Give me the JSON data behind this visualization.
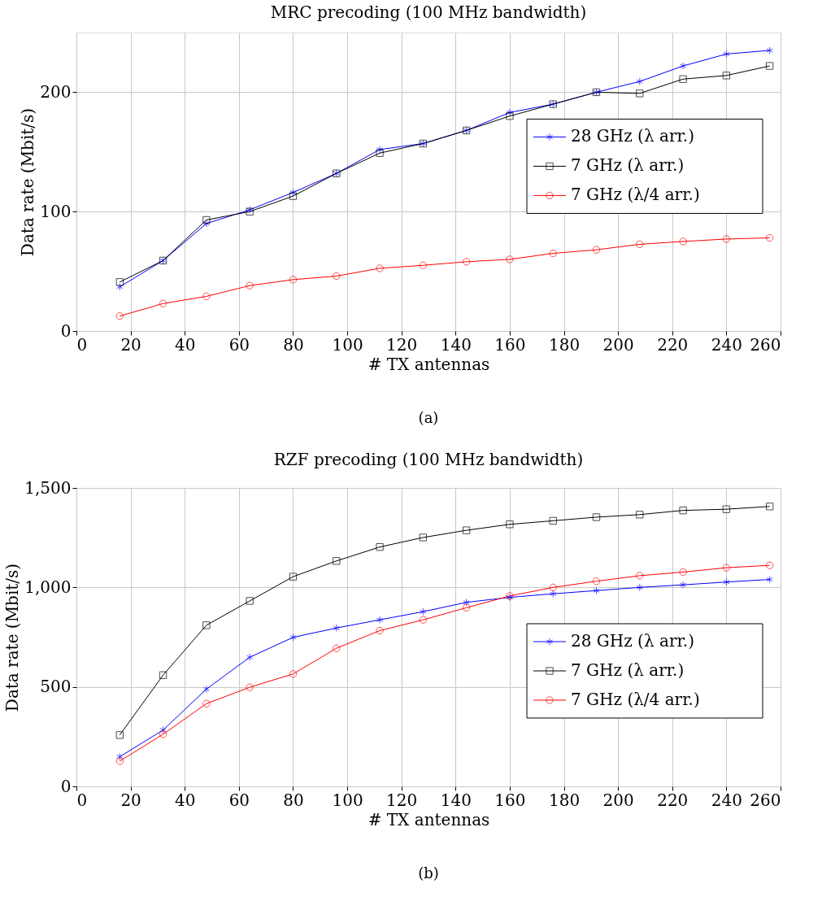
{
  "chart_data": [
    {
      "type": "line",
      "title": "MRC precoding (100 MHz bandwidth)",
      "xlabel": "# TX antennas",
      "ylabel": "Data rate (Mbit/s)",
      "x": [
        16,
        32,
        48,
        64,
        80,
        96,
        112,
        128,
        144,
        160,
        176,
        192,
        208,
        224,
        240,
        256
      ],
      "series": [
        {
          "name": "28 GHz (λ arr.)",
          "color": "#0000ff",
          "marker": "cross",
          "values": [
            37,
            59,
            90,
            101.5,
            116,
            132,
            152,
            157,
            168,
            183,
            190,
            200,
            209,
            222,
            232,
            235
          ]
        },
        {
          "name": "7 GHz (λ arr.)",
          "color": "#000000",
          "marker": "square",
          "values": [
            41,
            59,
            93,
            100,
            113,
            132,
            149,
            157,
            168,
            180,
            190,
            200,
            199,
            211,
            214,
            222
          ]
        },
        {
          "name": "7 GHz (λ/4 arr.)",
          "color": "#ff0000",
          "marker": "circle",
          "values": [
            12.5,
            23,
            29,
            38,
            43,
            46,
            52.5,
            55,
            58,
            60,
            65,
            68,
            72.6,
            75,
            77,
            78
          ]
        }
      ],
      "xlim": [
        0,
        260
      ],
      "xticks": [
        0,
        20,
        40,
        60,
        80,
        100,
        120,
        140,
        160,
        180,
        200,
        220,
        240,
        260
      ],
      "ylim": [
        0,
        250
      ],
      "yticks": [
        0,
        100,
        200
      ],
      "grid": true,
      "legend": "right",
      "line_style": "solid",
      "annotations": [
        "(a)"
      ]
    },
    {
      "type": "line",
      "title": "RZF precoding (100 MHz bandwidth)",
      "xlabel": "# TX antennas",
      "ylabel": "Data rate (Mbit/s)",
      "x": [
        16,
        32,
        48,
        64,
        80,
        96,
        112,
        128,
        144,
        160,
        176,
        192,
        208,
        224,
        240,
        256
      ],
      "series": [
        {
          "name": "28 GHz (λ arr.)",
          "color": "#0000ff",
          "marker": "cross",
          "values": [
            149,
            283,
            489,
            649,
            749,
            796,
            837,
            878,
            925,
            950,
            968,
            984,
            1000,
            1013,
            1027,
            1040
          ]
        },
        {
          "name": "7 GHz (λ arr.)",
          "color": "#000000",
          "marker": "square",
          "values": [
            258,
            559,
            810,
            932,
            1054,
            1133,
            1203,
            1251,
            1287,
            1317,
            1335,
            1353,
            1366,
            1387,
            1393,
            1407
          ]
        },
        {
          "name": "7 GHz (λ/4 arr.)",
          "color": "#ff0000",
          "marker": "circle",
          "values": [
            127,
            262,
            416,
            498,
            565,
            694,
            783,
            837,
            898,
            957,
            1000,
            1031,
            1059,
            1077,
            1099,
            1111
          ]
        }
      ],
      "xlim": [
        0,
        260
      ],
      "xticks": [
        0,
        20,
        40,
        60,
        80,
        100,
        120,
        140,
        160,
        180,
        200,
        220,
        240,
        260
      ],
      "ylim": [
        0,
        1500
      ],
      "yticks": [
        0,
        500,
        {
          "value": 1000,
          "label": "1,000"
        },
        {
          "value": 1500,
          "label": "1,500"
        }
      ],
      "grid": true,
      "legend": "bottom right",
      "line_style": "solid",
      "annotations": [
        "(b)"
      ]
    }
  ]
}
